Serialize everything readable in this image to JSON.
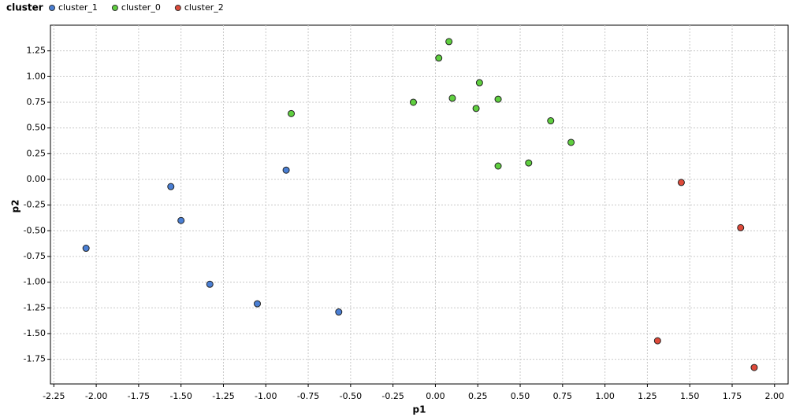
{
  "chart_data": {
    "type": "scatter",
    "legend_title": "cluster",
    "x_label": "p1",
    "y_label": "p2",
    "xlim": [
      -2.27,
      2.08
    ],
    "ylim": [
      -1.99,
      1.5
    ],
    "xticks": [
      -2.25,
      {
        "value": -2,
        "label": "-2.00"
      },
      -1.75,
      {
        "value": -1.5,
        "label": "-1.50"
      },
      -1.25,
      {
        "value": -1,
        "label": "-1.00"
      },
      -0.75,
      {
        "value": -0.5,
        "label": "-0.50"
      },
      -0.25,
      {
        "value": 0,
        "label": "0.00"
      },
      0.25,
      {
        "value": 0.5,
        "label": "0.50"
      },
      0.75,
      {
        "value": 1,
        "label": "1.00"
      },
      1.25,
      {
        "value": 1.5,
        "label": "1.50"
      },
      1.75,
      {
        "value": 2,
        "label": "2.00"
      }
    ],
    "yticks": [
      {
        "value": -1.75,
        "label": "-1.75"
      },
      {
        "value": -1.5,
        "label": "-1.50"
      },
      -1.25,
      {
        "value": -1,
        "label": "-1.00"
      },
      -0.75,
      {
        "value": -0.5,
        "label": "-0.50"
      },
      -0.25,
      {
        "value": 0,
        "label": "0.00"
      },
      0.25,
      {
        "value": 0.5,
        "label": "0.50"
      },
      0.75,
      {
        "value": 1,
        "label": "1.00"
      },
      1.25
    ],
    "grid": true,
    "series": [
      {
        "name": "cluster_1",
        "color": "#4a7fd4",
        "x": [
          -2.06,
          -1.56,
          -1.5,
          -1.33,
          -1.05,
          -0.88,
          -0.57
        ],
        "values": [
          -0.67,
          -0.07,
          -0.4,
          -1.02,
          -1.21,
          0.09,
          -1.29
        ]
      },
      {
        "name": "cluster_0",
        "color": "#5fcf3f",
        "x": [
          -0.85,
          -0.13,
          0.02,
          0.08,
          0.1,
          0.24,
          0.26,
          0.37,
          0.37,
          0.55,
          0.68,
          0.8
        ],
        "values": [
          0.64,
          0.75,
          1.18,
          1.34,
          0.79,
          0.69,
          0.94,
          0.78,
          0.13,
          0.16,
          0.57,
          0.36
        ]
      },
      {
        "name": "cluster_2",
        "color": "#de4a3a",
        "x": [
          1.45,
          1.8,
          1.31,
          1.88
        ],
        "values": [
          -0.03,
          -0.47,
          -1.57,
          -1.83
        ]
      }
    ]
  }
}
